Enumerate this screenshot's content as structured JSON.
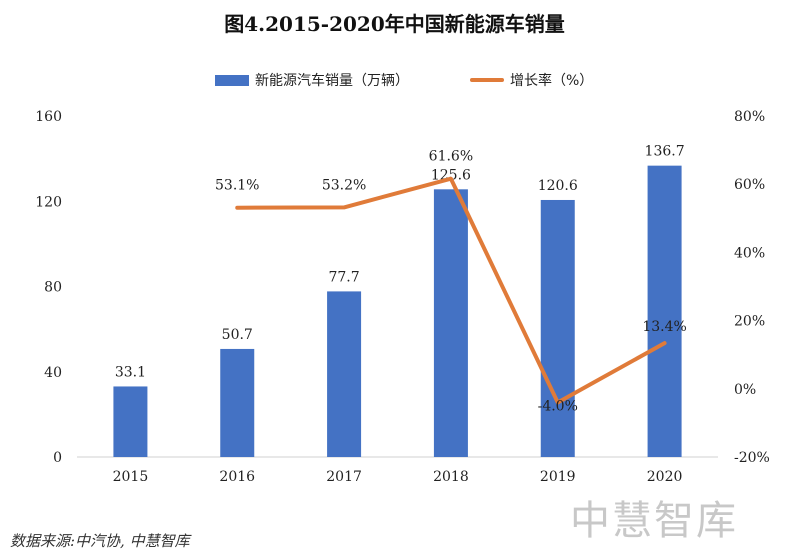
{
  "title": "图4.2015-2020年中国新能源车销量",
  "legend": {
    "bar_label": "新能源汽车销量（万辆）",
    "line_label": "增长率（%）"
  },
  "source": "数据来源:中汽协, 中慧智库",
  "watermark": "中慧智库",
  "colors": {
    "bar": "#4472c4",
    "line": "#e07b39"
  },
  "chart_data": {
    "type": "bar",
    "title": "图4.2015-2020年中国新能源车销量",
    "categories": [
      "2015",
      "2016",
      "2017",
      "2018",
      "2019",
      "2020"
    ],
    "series": [
      {
        "name": "新能源汽车销量（万辆）",
        "type": "bar",
        "axis": "left",
        "values": [
          33.1,
          50.7,
          77.7,
          125.6,
          120.6,
          136.7
        ],
        "labels": [
          "33.1",
          "50.7",
          "77.7",
          "125.6",
          "120.6",
          "136.7"
        ]
      },
      {
        "name": "增长率（%）",
        "type": "line",
        "axis": "right",
        "values": [
          null,
          53.1,
          53.2,
          61.6,
          -4.0,
          13.4
        ],
        "labels": [
          "",
          "53.1%",
          "53.2%",
          "61.6%",
          "-4.0%",
          "13.4%"
        ]
      }
    ],
    "y_left": {
      "min": 0,
      "max": 160,
      "ticks": [
        "0",
        "40",
        "80",
        "120",
        "160"
      ],
      "tick_values": [
        0,
        40,
        80,
        120,
        160
      ]
    },
    "y_right": {
      "min": -20,
      "max": 80,
      "ticks": [
        "-20%",
        "0%",
        "20%",
        "40%",
        "60%",
        "80%"
      ],
      "tick_values": [
        -20,
        0,
        20,
        40,
        60,
        80
      ]
    },
    "grid": false,
    "legend_position": "top"
  }
}
